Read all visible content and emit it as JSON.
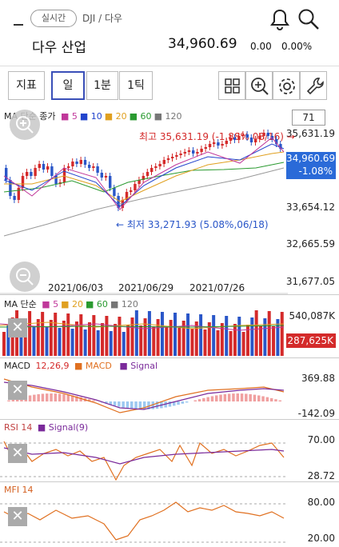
{
  "header": {
    "realtime_label": "실시간",
    "symbol": "DJI / 다우",
    "name": "다우 산업",
    "price": "34,960.69",
    "change": "0.00",
    "change_pct": "0.00%"
  },
  "toolbar": {
    "indicator": "지표",
    "day": "일",
    "minute": "1분",
    "tick": "1틱"
  },
  "main_chart": {
    "legend_title": "MA 단순 종가",
    "ma": [
      {
        "label": "5",
        "color": "#c0379a"
      },
      {
        "label": "10",
        "color": "#2244cc"
      },
      {
        "label": "20",
        "color": "#e0a020"
      },
      {
        "label": "60",
        "color": "#2a9a30"
      },
      {
        "label": "120",
        "color": "#777777"
      }
    ],
    "box_value": "71",
    "y_ticks": [
      "35,631.19",
      "33,654.12",
      "32,665.59",
      "31,677.05"
    ],
    "current_price": "34,960.69",
    "current_pct": "-1.08%",
    "high_annotation": "최고 35,631.19 (-1.88%,08/16) →",
    "low_annotation": "← 최저 33,271.93 (5.08%,06/18)",
    "x_labels": [
      "2021/06/03",
      "2021/06/29",
      "2021/07/26"
    ]
  },
  "volume": {
    "legend_title": "MA 단순",
    "ma": [
      {
        "label": "5",
        "color": "#c0379a"
      },
      {
        "label": "20",
        "color": "#e0a020"
      },
      {
        "label": "60",
        "color": "#2a9a30"
      },
      {
        "label": "120",
        "color": "#777777"
      }
    ],
    "top": "540,087K",
    "current": "287,625K"
  },
  "macd": {
    "legend_title": "MACD",
    "params": "12,26,9",
    "macd_label": "MACD",
    "signal_label": "Signal",
    "top": "369.88",
    "bottom": "-142.09"
  },
  "rsi": {
    "legend_title": "RSI 14",
    "signal_label": "Signal(9)",
    "top": "70.00",
    "bottom": "28.72"
  },
  "mfi": {
    "legend_title": "MFI 14",
    "top": "80.00",
    "bottom": "20.00"
  }
}
